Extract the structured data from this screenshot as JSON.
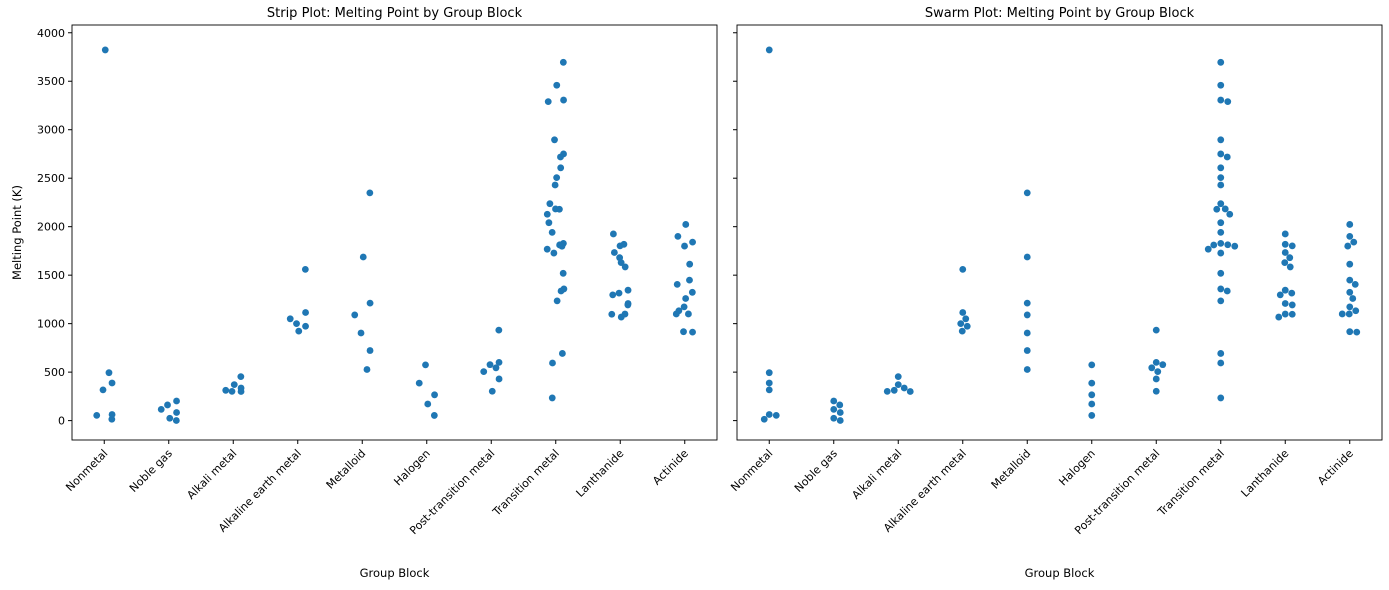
{
  "chart_data": [
    {
      "type": "strip",
      "title": "Strip Plot: Melting Point by Group Block",
      "x_label": "Group Block",
      "y_label": "Melting Point (K)",
      "categories": [
        "Nonmetal",
        "Noble gas",
        "Alkali metal",
        "Alkaline earth metal",
        "Metalloid",
        "Halogen",
        "Post-transition metal",
        "Transition metal",
        "Lanthanide",
        "Actinide"
      ],
      "values": [
        [
          14,
          3823,
          63,
          54,
          317,
          388,
          494
        ],
        [
          0.95,
          24.56,
          83.8,
          115.79,
          161.4,
          202
        ],
        [
          453.65,
          370.87,
          336.53,
          312.46,
          301.59,
          300
        ],
        [
          1560,
          923,
          1115,
          1050,
          1000,
          973
        ],
        [
          2349,
          1687,
          1211.4,
          1090,
          903.78,
          722.66,
          527
        ],
        [
          53.53,
          171.6,
          265.8,
          386.85,
          575
        ],
        [
          933.47,
          302.91,
          429.75,
          505.08,
          577,
          600.61,
          544.7
        ],
        [
          3695,
          3459,
          3306,
          3290,
          2896,
          2750,
          2719,
          2607,
          2506,
          2430,
          2237,
          2183,
          2180,
          2128,
          2041,
          1941,
          1828,
          1811,
          1799,
          1768,
          1814,
          1728,
          1519,
          1358,
          1337,
          1235,
          692.68,
          594,
          234
        ],
        [
          1193,
          1068,
          1208,
          1297,
          1315,
          1345,
          1099,
          1585,
          1629,
          1680,
          1734,
          1802,
          1818,
          1097,
          1925
        ],
        [
          1323,
          2023,
          1841,
          1405,
          917,
          912.5,
          1449,
          1613,
          1259,
          1173,
          1133,
          1800,
          1100,
          1100,
          1900
        ]
      ],
      "color": "#1f77b4",
      "ylim": [
        -200,
        4080
      ],
      "yticks": [
        0,
        500,
        1000,
        1500,
        2000,
        2500,
        3000,
        3500,
        4000
      ]
    },
    {
      "type": "swarm",
      "title": "Swarm Plot: Melting Point by Group Block",
      "x_label": "Group Block",
      "categories": [
        "Nonmetal",
        "Noble gas",
        "Alkali metal",
        "Alkaline earth metal",
        "Metalloid",
        "Halogen",
        "Post-transition metal",
        "Transition metal",
        "Lanthanide",
        "Actinide"
      ],
      "values": [
        [
          14,
          3823,
          63,
          54,
          317,
          388,
          494
        ],
        [
          0.95,
          24.56,
          83.8,
          115.79,
          161.4,
          202
        ],
        [
          453.65,
          370.87,
          336.53,
          312.46,
          301.59,
          300
        ],
        [
          1560,
          923,
          1115,
          1050,
          1000,
          973
        ],
        [
          2349,
          1687,
          1211.4,
          1090,
          903.78,
          722.66,
          527
        ],
        [
          53.53,
          171.6,
          265.8,
          386.85,
          575
        ],
        [
          933.47,
          302.91,
          429.75,
          505.08,
          577,
          600.61,
          544.7
        ],
        [
          3695,
          3459,
          3306,
          3290,
          2896,
          2750,
          2719,
          2607,
          2506,
          2430,
          2237,
          2183,
          2180,
          2128,
          2041,
          1941,
          1828,
          1811,
          1799,
          1768,
          1814,
          1728,
          1519,
          1358,
          1337,
          1235,
          692.68,
          594,
          234
        ],
        [
          1193,
          1068,
          1208,
          1297,
          1315,
          1345,
          1099,
          1585,
          1629,
          1680,
          1734,
          1802,
          1818,
          1097,
          1925
        ],
        [
          1323,
          2023,
          1841,
          1405,
          917,
          912.5,
          1449,
          1613,
          1259,
          1173,
          1133,
          1800,
          1100,
          1100,
          1900
        ]
      ],
      "color": "#1f77b4",
      "ylim": [
        -200,
        4080
      ],
      "yticks": [
        0,
        500,
        1000,
        1500,
        2000,
        2500,
        3000,
        3500,
        4000
      ]
    }
  ]
}
